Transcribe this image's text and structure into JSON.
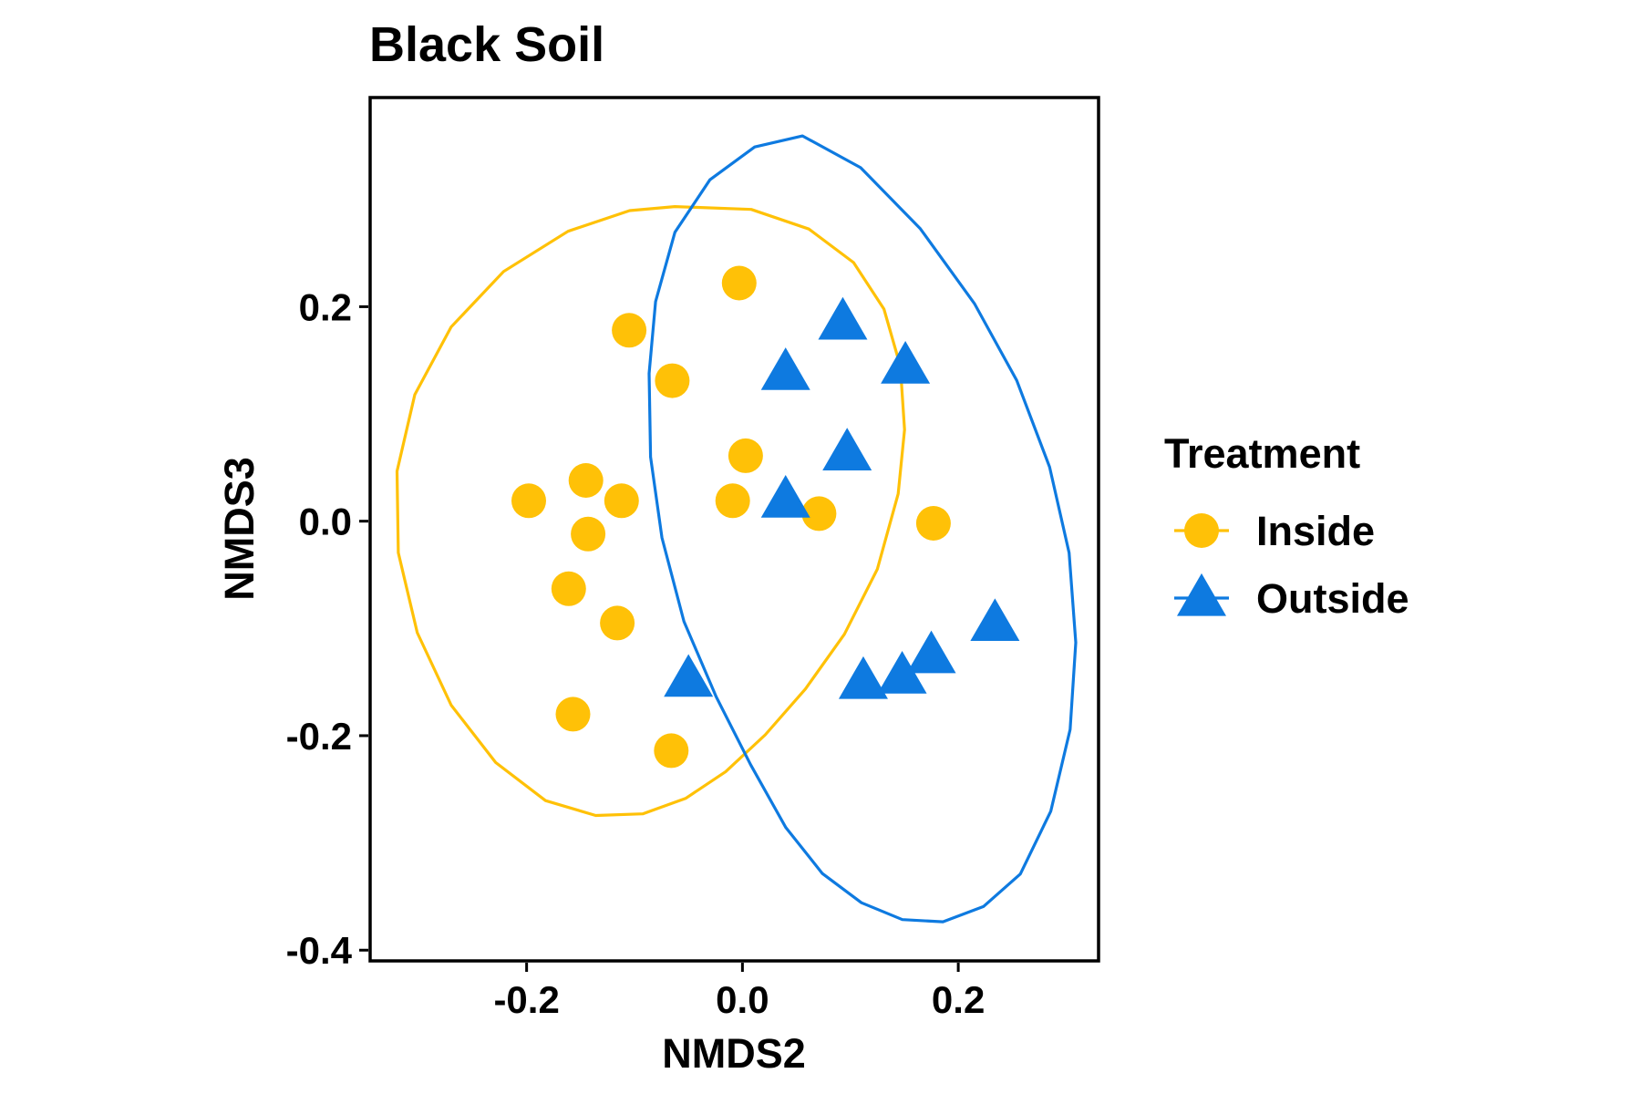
{
  "chart_data": {
    "type": "scatter",
    "title": "Black Soil",
    "xlabel": "NMDS2",
    "ylabel": "NMDS3",
    "xlim": [
      -0.345,
      0.33
    ],
    "ylim": [
      -0.41,
      0.395
    ],
    "x_ticks": [
      -0.2,
      0.0,
      0.2
    ],
    "x_tick_labels": [
      "-0.2",
      "0.0",
      "0.2"
    ],
    "y_ticks": [
      -0.4,
      -0.2,
      0.0,
      0.2
    ],
    "y_tick_labels": [
      "-0.4",
      "-0.2",
      "0.0",
      "0.2"
    ],
    "grid": false,
    "legend": {
      "title": "Treatment",
      "position": "right"
    },
    "series": [
      {
        "name": "Inside",
        "marker": "circle",
        "color": "#FFC107",
        "points": [
          [
            -0.003,
            0.222
          ],
          [
            -0.105,
            0.178
          ],
          [
            -0.065,
            0.131
          ],
          [
            0.003,
            0.061
          ],
          [
            -0.198,
            0.019
          ],
          [
            -0.145,
            0.038
          ],
          [
            -0.112,
            0.019
          ],
          [
            -0.143,
            -0.012
          ],
          [
            -0.009,
            0.019
          ],
          [
            0.071,
            0.007
          ],
          [
            0.177,
            -0.002
          ],
          [
            -0.161,
            -0.063
          ],
          [
            -0.116,
            -0.095
          ],
          [
            -0.157,
            -0.18
          ],
          [
            -0.066,
            -0.214
          ]
        ],
        "ellipse": {
          "x": [
            -0.0627,
            -0.1045,
            -0.1616,
            -0.2213,
            -0.27,
            -0.3036,
            -0.3201,
            -0.3189,
            -0.3013,
            -0.2699,
            -0.2287,
            -0.1825,
            -0.136,
            -0.0924,
            -0.0527,
            -0.0155,
            0.0211,
            0.0583,
            0.0945,
            0.125,
            0.1443,
            0.1502,
            0.1463,
            0.1311,
            0.103,
            0.0615,
            0.0081,
            -0.0627
          ],
          "y": [
            0.2933,
            0.2896,
            0.2703,
            0.2328,
            0.181,
            0.118,
            0.0466,
            -0.0294,
            -0.104,
            -0.1716,
            -0.225,
            -0.2606,
            -0.2744,
            -0.2729,
            -0.2585,
            -0.2335,
            -0.1992,
            -0.1565,
            -0.1054,
            -0.0448,
            0.0255,
            0.0852,
            0.1444,
            0.1978,
            0.2411,
            0.2724,
            0.2907,
            0.2933
          ]
        }
      },
      {
        "name": "Outside",
        "marker": "triangle",
        "color": "#0E7AE0",
        "points": [
          [
            0.093,
            0.186
          ],
          [
            0.04,
            0.139
          ],
          [
            0.151,
            0.145
          ],
          [
            0.097,
            0.064
          ],
          [
            0.04,
            0.02
          ],
          [
            -0.05,
            -0.147
          ],
          [
            0.112,
            -0.149
          ],
          [
            0.148,
            -0.144
          ],
          [
            0.175,
            -0.125
          ],
          [
            0.234,
            -0.095
          ]
        ],
        "ellipse": {
          "x": [
            0.0557,
            0.0113,
            -0.0301,
            -0.0626,
            -0.0805,
            -0.0865,
            -0.0851,
            -0.0746,
            -0.0542,
            -0.0244,
            0.0075,
            0.0402,
            0.0741,
            0.1103,
            0.1482,
            0.1858,
            0.2233,
            0.2575,
            0.2857,
            0.3036,
            0.3089,
            0.3027,
            0.2846,
            0.2541,
            0.2149,
            0.1648,
            0.1095,
            0.0557
          ],
          "y": [
            0.3592,
            0.3489,
            0.3183,
            0.2694,
            0.2048,
            0.1377,
            0.0599,
            -0.0155,
            -0.0934,
            -0.1636,
            -0.227,
            -0.2857,
            -0.3286,
            -0.3558,
            -0.3715,
            -0.3735,
            -0.3593,
            -0.329,
            -0.2704,
            -0.1943,
            -0.1132,
            -0.0295,
            0.0505,
            0.1313,
            0.203,
            0.2727,
            0.3296,
            0.3592
          ]
        }
      }
    ]
  }
}
